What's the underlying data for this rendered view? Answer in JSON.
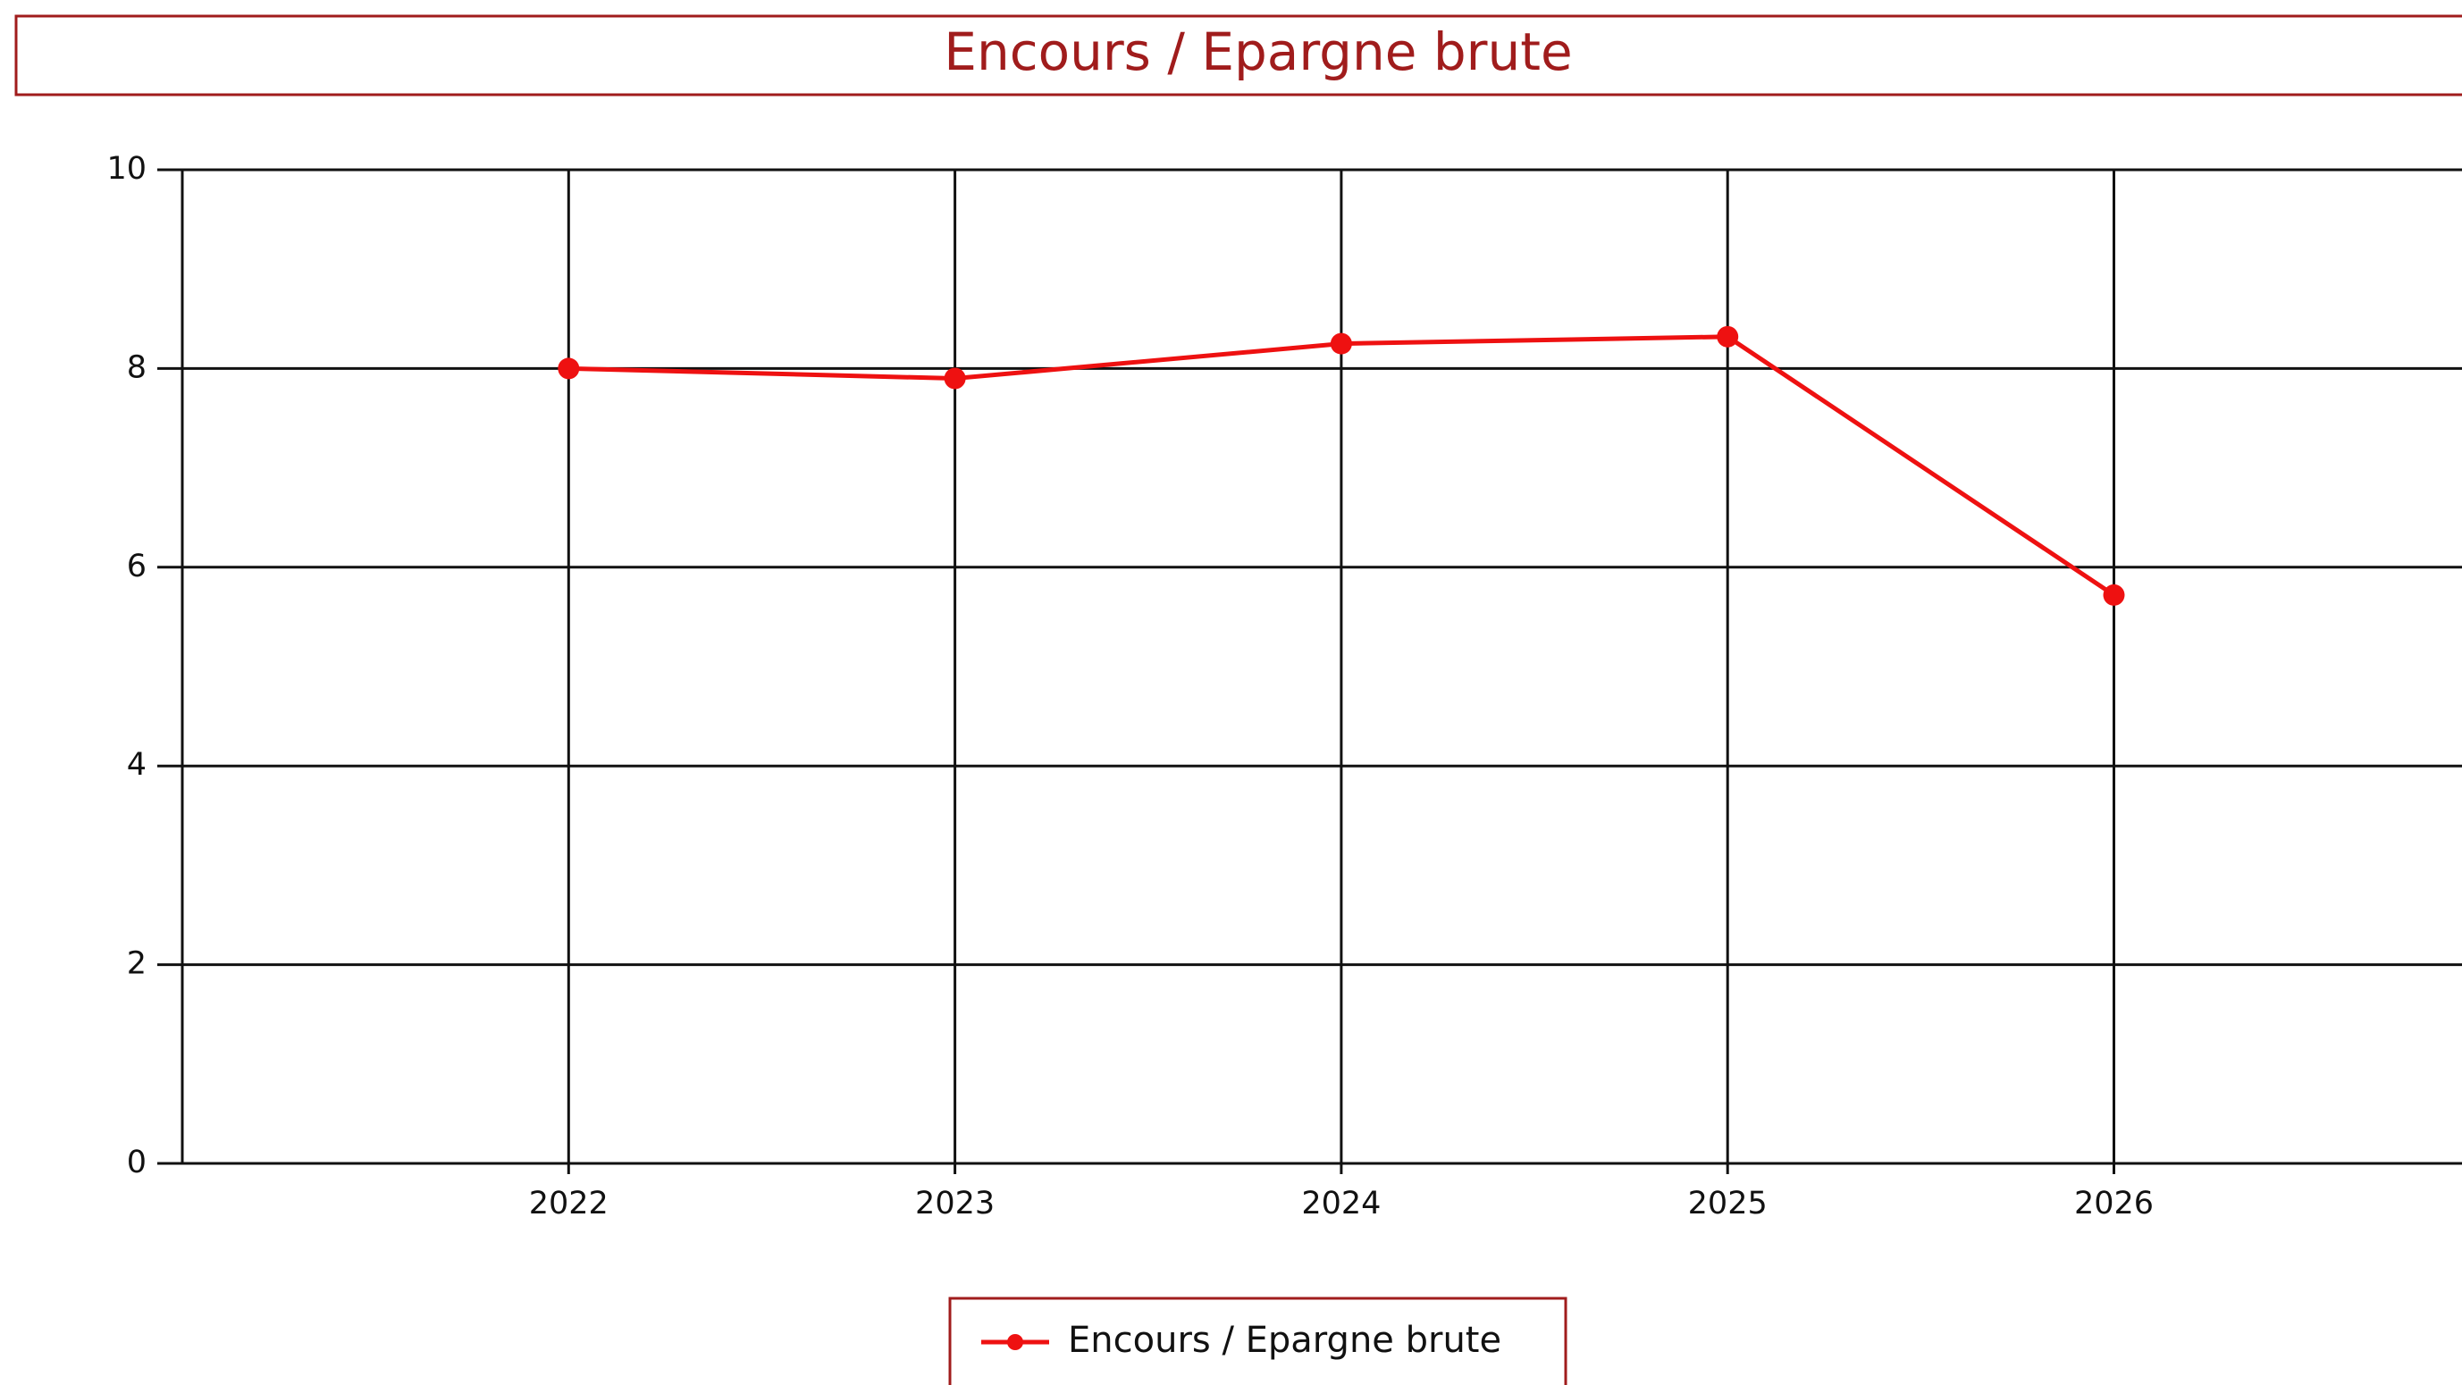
{
  "chart_data": {
    "type": "line",
    "title": "Encours / Epargne brute",
    "categories": [
      "2022",
      "2023",
      "2024",
      "2025",
      "2026"
    ],
    "series": [
      {
        "name": "Encours / Epargne brute",
        "color": "#ee1111",
        "values": [
          8.0,
          7.9,
          8.25,
          8.32,
          5.72
        ]
      }
    ],
    "ylim": [
      0,
      10
    ],
    "yticks": [
      0,
      2,
      4,
      6,
      8,
      10
    ],
    "grid": true,
    "legend": "bottom"
  }
}
